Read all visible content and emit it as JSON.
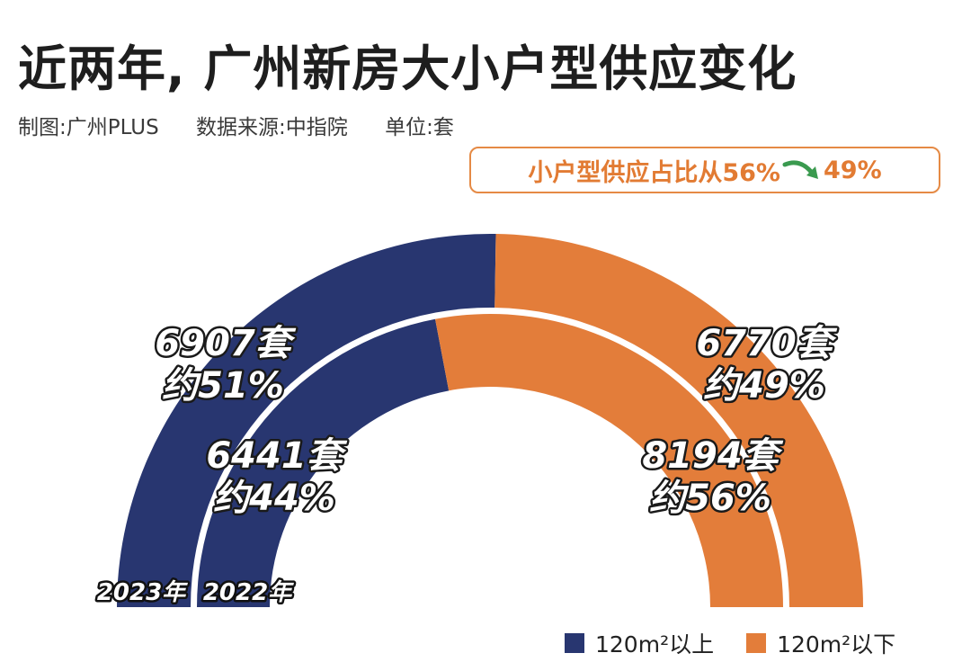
{
  "header": {
    "title": "近两年, 广州新房大小户型供应变化",
    "credit": "制图:广州PLUS",
    "source": "数据来源:中指院",
    "unit": "单位:套"
  },
  "note": {
    "text_before": "小户型供应占比从56%",
    "text_after": "49%"
  },
  "colors": {
    "large": "#283670",
    "small": "#e37d3a",
    "arrow": "#3a9a4f"
  },
  "legend": [
    {
      "label": "120m²以上",
      "color": "#283670"
    },
    {
      "label": "120m²以下",
      "color": "#e37d3a"
    }
  ],
  "chart_data": {
    "type": "pie",
    "series": [
      {
        "name": "2023年",
        "categories": [
          "120m²以上",
          "120m²以下"
        ],
        "values": [
          6907,
          6770
        ],
        "labels": [
          [
            "6907套",
            "约51%"
          ],
          [
            "6770套",
            "约49%"
          ]
        ]
      },
      {
        "name": "2022年",
        "categories": [
          "120m²以上",
          "120m²以下"
        ],
        "values": [
          6441,
          8194
        ],
        "labels": [
          [
            "6441套",
            "约44%"
          ],
          [
            "8194套",
            "约56%"
          ]
        ]
      }
    ]
  }
}
